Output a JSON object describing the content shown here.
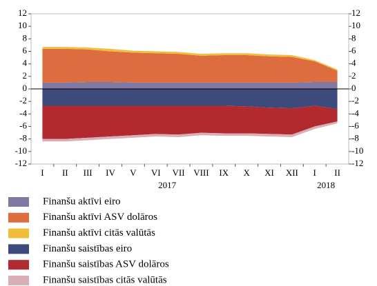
{
  "chart_data": {
    "type": "stacked_area",
    "categories": [
      "I",
      "II",
      "III",
      "IV",
      "V",
      "VI",
      "VII",
      "VIII",
      "IX",
      "X",
      "XI",
      "XII",
      "I",
      "II"
    ],
    "x_group_labels": [
      "2017",
      "2018"
    ],
    "ylim": [
      -12,
      12
    ],
    "yticks": [
      -12,
      -10,
      -8,
      -6,
      -4,
      -2,
      0,
      2,
      4,
      6,
      8,
      10,
      12
    ],
    "y2lim": [
      -12,
      12
    ],
    "y2ticks": [
      -12,
      -10,
      -8,
      -6,
      -4,
      -2,
      0,
      2,
      4,
      6,
      8,
      10,
      12
    ],
    "series": [
      {
        "name": "Finanšu aktīvi eiro",
        "color": "#8079a1",
        "values": [
          1.0,
          1.0,
          1.1,
          1.1,
          1.0,
          1.0,
          1.0,
          1.0,
          1.0,
          1.0,
          1.0,
          1.0,
          1.1,
          1.1
        ]
      },
      {
        "name": "Finanšu aktīvi ASV dolāros",
        "color": "#dd6c3e",
        "values": [
          5.4,
          5.4,
          5.2,
          4.9,
          4.8,
          4.7,
          4.6,
          4.3,
          4.4,
          4.4,
          4.2,
          4.1,
          3.3,
          1.8
        ]
      },
      {
        "name": "Finanšu aktīvi citās valūtās",
        "color": "#f0be3c",
        "values": [
          0.3,
          0.3,
          0.3,
          0.4,
          0.3,
          0.3,
          0.3,
          0.3,
          0.3,
          0.3,
          0.3,
          0.3,
          0.2,
          0.2
        ]
      },
      {
        "name": "Finanšu saistības eiro",
        "color": "#3d4a7c",
        "values": [
          -2.7,
          -2.7,
          -2.7,
          -2.7,
          -2.7,
          -2.7,
          -2.7,
          -2.7,
          -2.7,
          -2.8,
          -3.0,
          -3.1,
          -2.7,
          -3.2
        ]
      },
      {
        "name": "Finanšu saistības ASV dolāros",
        "color": "#b02a2f",
        "values": [
          -5.3,
          -5.3,
          -5.1,
          -4.9,
          -4.7,
          -4.5,
          -4.6,
          -4.3,
          -4.4,
          -4.3,
          -4.2,
          -4.2,
          -3.3,
          -2.0
        ]
      },
      {
        "name": "Finanšu saistības citās valūtās",
        "color": "#d6b0b4",
        "values": [
          -0.4,
          -0.4,
          -0.4,
          -0.4,
          -0.4,
          -0.4,
          -0.4,
          -0.4,
          -0.4,
          -0.4,
          -0.4,
          -0.4,
          -0.4,
          -0.3
        ]
      }
    ]
  }
}
